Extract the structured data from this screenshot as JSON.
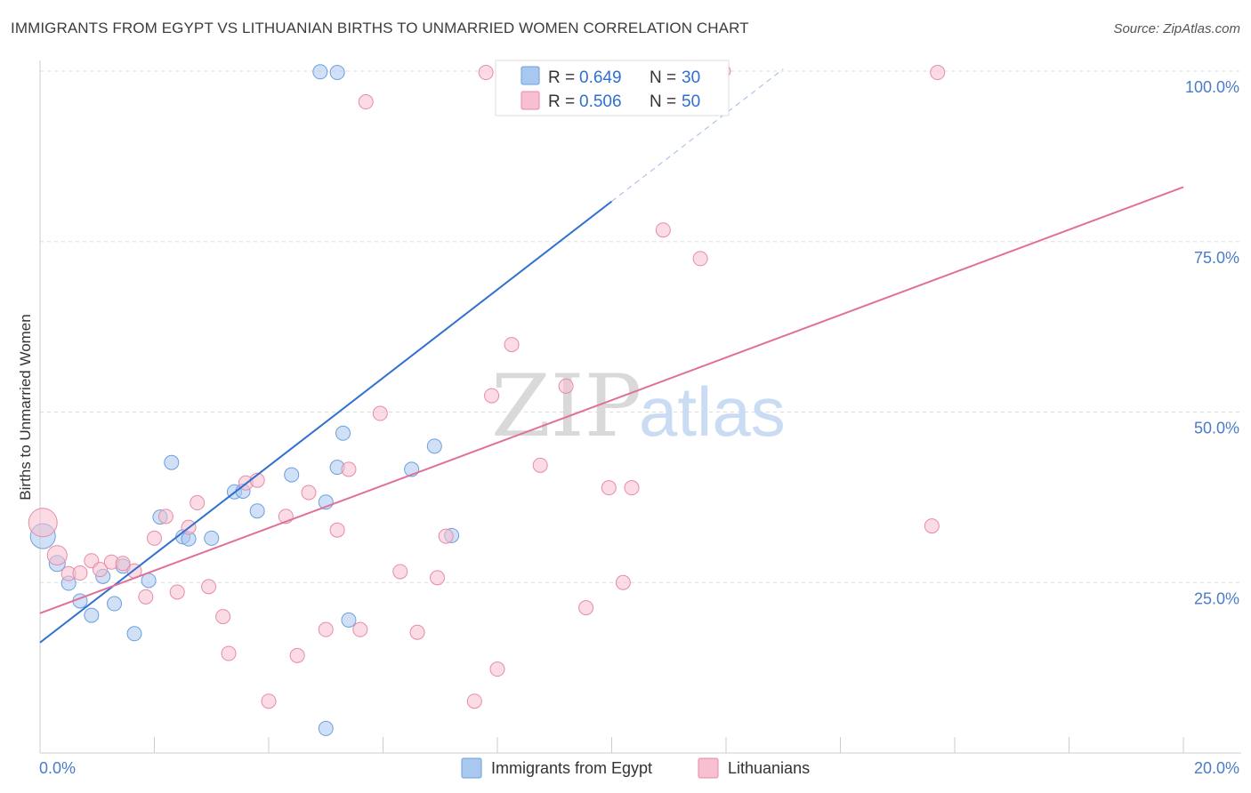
{
  "title": "IMMIGRANTS FROM EGYPT VS LITHUANIAN BIRTHS TO UNMARRIED WOMEN CORRELATION CHART",
  "source": "Source: ZipAtlas.com",
  "watermark": {
    "zip": "ZIP",
    "atlas": "atlas"
  },
  "legend_top": [
    {
      "r_label": "R =",
      "r_value": "0.649",
      "n_label": "N =",
      "n_value": "30",
      "color": "#a9c8f0",
      "stroke": "#6c9fdc"
    },
    {
      "r_label": "R =",
      "r_value": "0.506",
      "n_label": "N =",
      "n_value": "50",
      "color": "#f7bfd0",
      "stroke": "#e78aa8"
    }
  ],
  "legend_bottom": [
    {
      "label": "Immigrants from Egypt",
      "color": "#a9c8f0",
      "stroke": "#6c9fdc"
    },
    {
      "label": "Lithuanians",
      "color": "#f7bfd0",
      "stroke": "#e78aa8"
    }
  ],
  "chart_data": {
    "type": "scatter",
    "xlabel": "",
    "ylabel": "Births to Unmarried Women",
    "xlim": [
      0,
      20
    ],
    "ylim": [
      0,
      100
    ],
    "x_tick_labels": [
      {
        "value": 0,
        "label": "0.0%"
      },
      {
        "value": 20,
        "label": "20.0%"
      }
    ],
    "y_tick_labels": [
      {
        "value": 25,
        "label": "25.0%"
      },
      {
        "value": 50,
        "label": "50.0%"
      },
      {
        "value": 75,
        "label": "75.0%"
      },
      {
        "value": 100,
        "label": "100.0%"
      }
    ],
    "series": [
      {
        "name": "Immigrants from Egypt",
        "color": "#a9c8f0",
        "stroke": "#6c9fdc",
        "line_color": "#2f6fd1",
        "trend": {
          "x0": 0,
          "y0": 16.2,
          "x1": 10.0,
          "y1": 80.9,
          "dash_to_x": 13.0,
          "dash_to_y": 100.3
        },
        "points": [
          [
            0.05,
            31.8,
            14
          ],
          [
            0.3,
            27.8,
            9
          ],
          [
            0.5,
            24.9,
            8
          ],
          [
            0.7,
            22.3,
            8
          ],
          [
            0.9,
            20.2,
            8
          ],
          [
            1.1,
            25.9,
            8
          ],
          [
            1.3,
            21.9,
            8
          ],
          [
            1.45,
            27.4,
            8
          ],
          [
            1.65,
            17.5,
            8
          ],
          [
            1.9,
            25.3,
            8
          ],
          [
            2.1,
            34.6,
            8
          ],
          [
            2.3,
            42.6,
            8
          ],
          [
            2.5,
            31.7,
            8
          ],
          [
            2.6,
            31.4,
            8
          ],
          [
            3.0,
            31.5,
            8
          ],
          [
            3.4,
            38.3,
            8
          ],
          [
            3.55,
            38.4,
            8
          ],
          [
            3.8,
            35.5,
            8
          ],
          [
            4.4,
            40.8,
            8
          ],
          [
            5.0,
            3.6,
            8
          ],
          [
            5.2,
            99.8,
            8
          ],
          [
            4.9,
            99.9,
            8
          ],
          [
            5.0,
            36.8,
            8
          ],
          [
            5.3,
            46.9,
            8
          ],
          [
            5.2,
            41.9,
            8
          ],
          [
            5.4,
            19.5,
            8
          ],
          [
            6.5,
            41.6,
            8
          ],
          [
            6.9,
            45.0,
            8
          ],
          [
            7.2,
            31.9,
            8
          ],
          [
            8.6,
            99.8,
            8
          ]
        ]
      },
      {
        "name": "Lithuanians",
        "color": "#f7bfd0",
        "stroke": "#e78aa8",
        "line_color": "#e0709a",
        "trend": {
          "x0": 0,
          "y0": 20.5,
          "x1": 20.0,
          "y1": 83.0
        },
        "points": [
          [
            0.05,
            33.8,
            16
          ],
          [
            0.3,
            29.0,
            11
          ],
          [
            0.5,
            26.3,
            8
          ],
          [
            0.7,
            26.4,
            8
          ],
          [
            0.9,
            28.2,
            8
          ],
          [
            1.05,
            26.9,
            8
          ],
          [
            1.25,
            28.0,
            8
          ],
          [
            1.45,
            27.8,
            8
          ],
          [
            1.65,
            26.7,
            8
          ],
          [
            1.85,
            22.9,
            8
          ],
          [
            2.0,
            31.5,
            8
          ],
          [
            2.2,
            34.7,
            8
          ],
          [
            2.4,
            23.6,
            8
          ],
          [
            2.6,
            33.1,
            8
          ],
          [
            2.75,
            36.7,
            8
          ],
          [
            2.95,
            24.4,
            8
          ],
          [
            3.2,
            20.0,
            8
          ],
          [
            3.3,
            14.6,
            8
          ],
          [
            3.6,
            39.6,
            8
          ],
          [
            3.8,
            40.0,
            8
          ],
          [
            4.0,
            7.6,
            8
          ],
          [
            4.3,
            34.7,
            8
          ],
          [
            4.5,
            14.3,
            8
          ],
          [
            4.7,
            38.2,
            8
          ],
          [
            5.0,
            18.1,
            8
          ],
          [
            5.2,
            32.7,
            8
          ],
          [
            5.4,
            41.6,
            8
          ],
          [
            5.6,
            18.1,
            8
          ],
          [
            5.7,
            95.5,
            8
          ],
          [
            5.95,
            49.8,
            8
          ],
          [
            6.3,
            26.6,
            8
          ],
          [
            6.6,
            17.7,
            8
          ],
          [
            6.95,
            25.7,
            8
          ],
          [
            7.1,
            31.8,
            8
          ],
          [
            7.6,
            7.6,
            8
          ],
          [
            7.8,
            99.8,
            8
          ],
          [
            7.9,
            52.4,
            8
          ],
          [
            8.0,
            12.3,
            8
          ],
          [
            8.25,
            59.9,
            8
          ],
          [
            8.75,
            42.2,
            8
          ],
          [
            9.2,
            53.8,
            8
          ],
          [
            9.55,
            21.3,
            8
          ],
          [
            9.95,
            38.9,
            8
          ],
          [
            10.2,
            25.0,
            8
          ],
          [
            10.35,
            38.9,
            8
          ],
          [
            10.9,
            76.7,
            8
          ],
          [
            11.55,
            72.5,
            8
          ],
          [
            11.95,
            100.0,
            8
          ],
          [
            15.6,
            33.3,
            8
          ],
          [
            15.7,
            99.8,
            8
          ]
        ]
      }
    ],
    "grid": true,
    "legend_position": "top-center"
  }
}
